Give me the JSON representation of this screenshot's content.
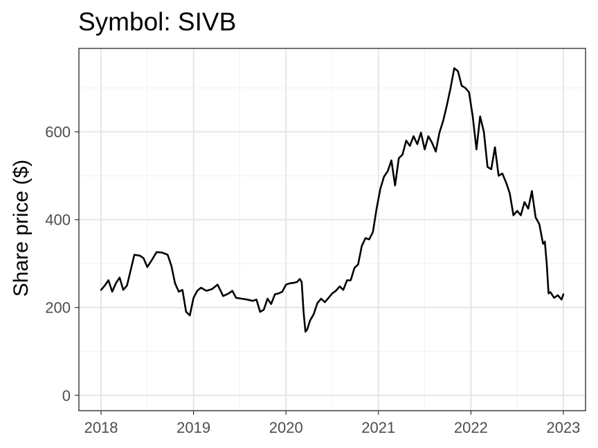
{
  "chart_data": {
    "type": "line",
    "title": "Symbol: SIVB",
    "xlabel": "",
    "ylabel": "Share price ($)",
    "xlim": [
      2017.76,
      2023.24
    ],
    "ylim": [
      -35,
      790
    ],
    "x_ticks": [
      2018,
      2019,
      2020,
      2021,
      2022,
      2023
    ],
    "x_tick_labels": [
      "2018",
      "2019",
      "2020",
      "2021",
      "2022",
      "2023"
    ],
    "x_minor_ticks": [
      2018.5,
      2019.5,
      2020.5,
      2021.5,
      2022.5
    ],
    "y_ticks": [
      0,
      200,
      400,
      600
    ],
    "y_tick_labels": [
      "0",
      "200",
      "400",
      "600"
    ],
    "y_minor_ticks": [
      100,
      300,
      500,
      700
    ],
    "grid": true,
    "series": [
      {
        "name": "SIVB",
        "x": [
          2018.0,
          2018.04,
          2018.08,
          2018.12,
          2018.16,
          2018.2,
          2018.24,
          2018.28,
          2018.32,
          2018.36,
          2018.42,
          2018.46,
          2018.5,
          2018.54,
          2018.6,
          2018.66,
          2018.72,
          2018.76,
          2018.8,
          2018.84,
          2018.88,
          2018.92,
          2018.96,
          2019.0,
          2019.04,
          2019.08,
          2019.14,
          2019.2,
          2019.26,
          2019.32,
          2019.38,
          2019.42,
          2019.46,
          2019.52,
          2019.58,
          2019.64,
          2019.68,
          2019.72,
          2019.76,
          2019.8,
          2019.84,
          2019.88,
          2019.92,
          2019.96,
          2020.0,
          2020.04,
          2020.08,
          2020.12,
          2020.15,
          2020.17,
          2020.19,
          2020.21,
          2020.23,
          2020.26,
          2020.3,
          2020.34,
          2020.38,
          2020.42,
          2020.46,
          2020.5,
          2020.54,
          2020.58,
          2020.62,
          2020.66,
          2020.7,
          2020.74,
          2020.78,
          2020.82,
          2020.86,
          2020.9,
          2020.94,
          2020.98,
          2021.02,
          2021.06,
          2021.1,
          2021.14,
          2021.18,
          2021.22,
          2021.26,
          2021.3,
          2021.34,
          2021.38,
          2021.42,
          2021.46,
          2021.5,
          2021.54,
          2021.58,
          2021.62,
          2021.66,
          2021.7,
          2021.74,
          2021.78,
          2021.82,
          2021.86,
          2021.9,
          2021.94,
          2021.98,
          2022.02,
          2022.06,
          2022.1,
          2022.14,
          2022.18,
          2022.22,
          2022.26,
          2022.3,
          2022.34,
          2022.38,
          2022.42,
          2022.46,
          2022.5,
          2022.54,
          2022.58,
          2022.62,
          2022.66,
          2022.7,
          2022.74,
          2022.78,
          2022.8,
          2022.82,
          2022.84,
          2022.86,
          2022.9,
          2022.94,
          2022.98,
          2023.0
        ],
        "values": [
          240,
          250,
          262,
          236,
          255,
          268,
          240,
          250,
          285,
          320,
          318,
          312,
          292,
          305,
          326,
          325,
          320,
          295,
          255,
          236,
          240,
          190,
          182,
          222,
          238,
          245,
          238,
          242,
          252,
          226,
          232,
          238,
          222,
          220,
          218,
          215,
          218,
          190,
          195,
          220,
          208,
          230,
          232,
          236,
          252,
          255,
          256,
          258,
          265,
          258,
          190,
          145,
          150,
          170,
          185,
          210,
          220,
          212,
          222,
          232,
          238,
          248,
          240,
          262,
          262,
          290,
          298,
          340,
          358,
          355,
          372,
          425,
          470,
          498,
          510,
          535,
          478,
          540,
          548,
          580,
          568,
          590,
          572,
          598,
          560,
          590,
          575,
          555,
          598,
          625,
          660,
          700,
          745,
          738,
          705,
          700,
          690,
          635,
          560,
          635,
          600,
          520,
          515,
          565,
          500,
          505,
          485,
          460,
          410,
          420,
          410,
          440,
          425,
          465,
          405,
          390,
          345,
          350,
          300,
          232,
          235,
          222,
          228,
          218,
          230
        ]
      }
    ]
  }
}
